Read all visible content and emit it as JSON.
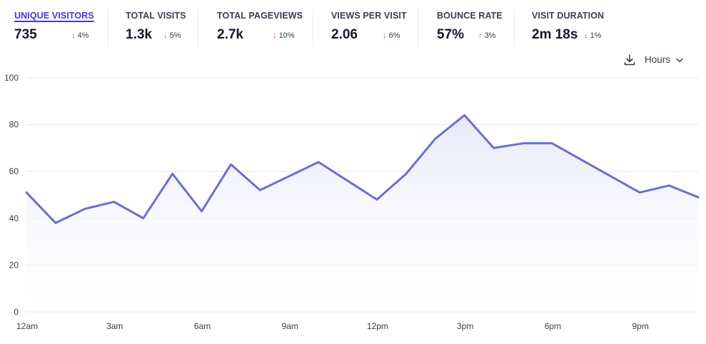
{
  "metrics": [
    {
      "label": "UNIQUE VISITORS",
      "value": "735",
      "change": "4%",
      "direction": "down",
      "active": true
    },
    {
      "label": "TOTAL VISITS",
      "value": "1.3k",
      "change": "5%",
      "direction": "down",
      "active": false
    },
    {
      "label": "TOTAL PAGEVIEWS",
      "value": "2.7k",
      "change": "10%",
      "direction": "down",
      "active": false
    },
    {
      "label": "VIEWS PER VISIT",
      "value": "2.06",
      "change": "6%",
      "direction": "down",
      "active": false
    },
    {
      "label": "BOUNCE RATE",
      "value": "57%",
      "change": "3%",
      "direction": "up",
      "active": false
    },
    {
      "label": "VISIT DURATION",
      "value": "2m 18s",
      "change": "1%",
      "direction": "down",
      "active": false
    }
  ],
  "toolbar": {
    "download_icon": "download-icon",
    "interval_label": "Hours",
    "interval_icon": "chevron-down-icon"
  },
  "colors": {
    "line": "#6b6fd0",
    "fill_top": "#e6e7f8",
    "grid": "#e5e7eb",
    "change_arrow": "#ef4444"
  },
  "chart_data": {
    "type": "area",
    "x": [
      "12am",
      "1am",
      "2am",
      "3am",
      "4am",
      "5am",
      "6am",
      "7am",
      "8am",
      "9am",
      "10am",
      "11am",
      "12pm",
      "1pm",
      "2pm",
      "3pm",
      "4pm",
      "5pm",
      "6pm",
      "7pm",
      "8pm",
      "9pm",
      "10pm",
      "11pm"
    ],
    "x_tick_labels": [
      "12am",
      "3am",
      "6am",
      "9am",
      "12pm",
      "3pm",
      "6pm",
      "9pm"
    ],
    "series": [
      {
        "values": [
          51,
          38,
          44,
          47,
          40,
          59,
          43,
          63,
          52,
          58,
          64,
          56,
          48,
          59,
          74,
          84,
          70,
          72,
          72,
          65,
          58,
          51,
          54,
          49
        ]
      }
    ],
    "yticks": [
      0,
      20,
      40,
      60,
      80,
      100
    ],
    "ylim": [
      0,
      100
    ],
    "grid": true,
    "legend": "none"
  }
}
